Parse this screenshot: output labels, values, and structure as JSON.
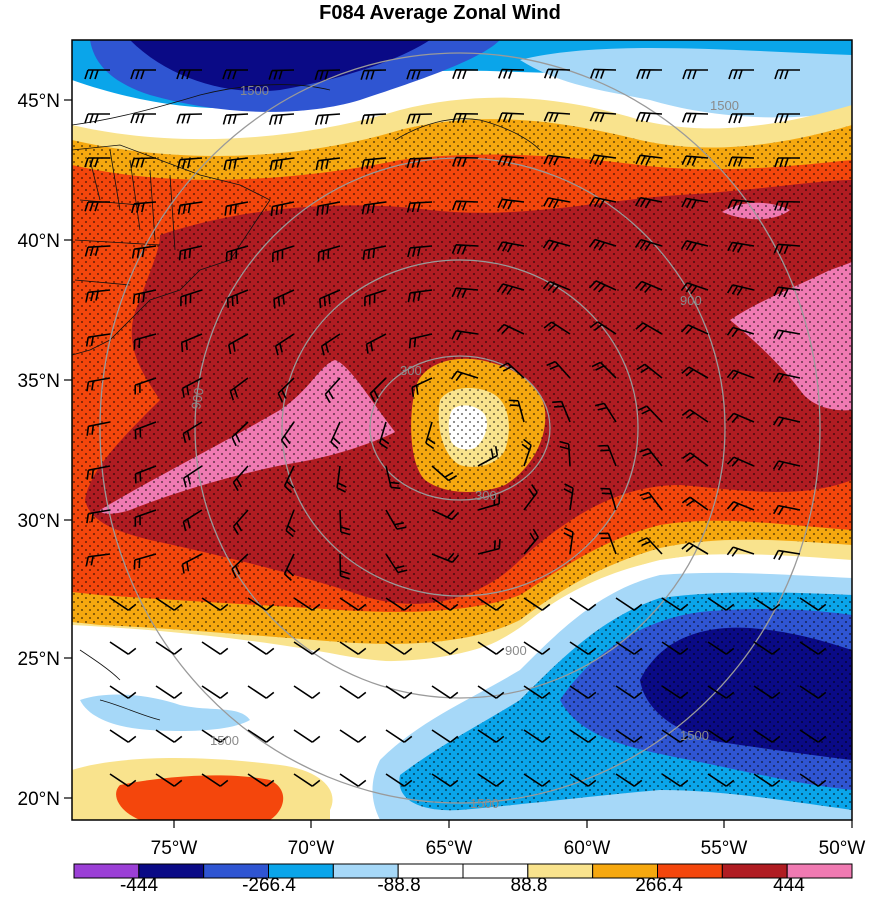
{
  "title": "F084 Average Zonal Wind",
  "lon_labels": [
    "75°W",
    "70°W",
    "65°W",
    "60°W",
    "55°W",
    "50°W"
  ],
  "lat_labels": [
    "45°N",
    "40°N",
    "35°N",
    "30°N",
    "25°N",
    "20°N"
  ],
  "colorbar": {
    "labels": [
      "-444",
      "-266.4",
      "-88.8",
      "88.8",
      "266.4",
      "444"
    ],
    "colors": [
      "#9b3fd6",
      "#0a0a86",
      "#2f55d2",
      "#0aa5ea",
      "#a6d8f8",
      "#ffffff",
      "#ffffff",
      "#f9e38d",
      "#f6a80f",
      "#f4460c",
      "#b01c22",
      "#f07ab2"
    ]
  },
  "ring_labels": [
    "300",
    "300",
    "900",
    "900",
    "900",
    "1500",
    "1500",
    "1500",
    "1500",
    "1500"
  ],
  "colors": {
    "white": "#ffffff",
    "pale_blue": "#a6d8f8",
    "blue": "#0aa5ea",
    "royal_blue": "#2f55d2",
    "navy": "#0a0a86",
    "yellow": "#f9e38d",
    "orange": "#f6a80f",
    "red_orange": "#f4460c",
    "dark_red": "#b01c22",
    "pink": "#f07ab2",
    "ring": "#9a9a9a"
  }
}
